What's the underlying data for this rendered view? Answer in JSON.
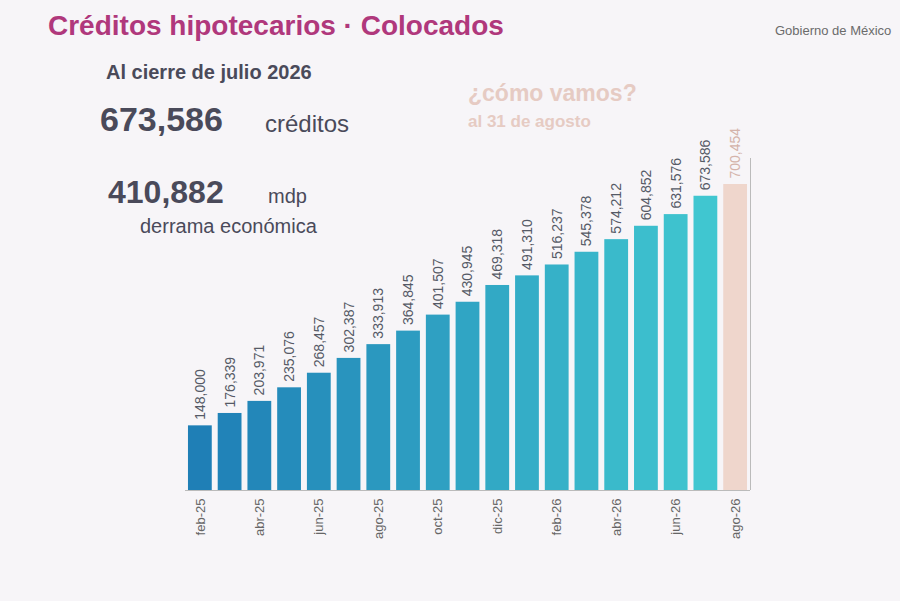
{
  "chart_data": {
    "type": "bar",
    "title": "Créditos hipotecarios · Colocados",
    "subtitle": "Al cierre de julio 2026",
    "annotations": [
      "673,586",
      "créditos",
      "410,882",
      "mdp",
      "derrama económica",
      "¿cómo vamos?",
      "al 31 de agosto",
      "Gobierno de México"
    ],
    "categories": [
      "feb-25",
      null,
      "abr-25",
      null,
      "jun-25",
      null,
      "ago-25",
      null,
      "oct-25",
      null,
      "dic-25",
      null,
      "feb-26",
      null,
      "abr-26",
      null,
      "jun-26",
      null,
      "ago-26"
    ],
    "values": [
      148000,
      176339,
      203971,
      235076,
      268457,
      302387,
      333913,
      364845,
      401507,
      430945,
      469318,
      491310,
      516237,
      545378,
      574212,
      604852,
      631576,
      673586,
      700454
    ],
    "value_labels": [
      "148,000",
      "176,339",
      "203,971",
      "235,076",
      "268,457",
      "302,387",
      "333,913",
      "364,845",
      "401,507",
      "430,945",
      "469,318",
      "491,310",
      "516,237",
      "545,378",
      "574,212",
      "604,852",
      "631,576",
      "673,586",
      "700,454"
    ],
    "colors": [
      "#1f7fb6",
      "#2183b8",
      "#2387b9",
      "#258cbb",
      "#2790bc",
      "#2994be",
      "#2b98bf",
      "#2d9cc1",
      "#2fa0c2",
      "#30a5c4",
      "#32a9c5",
      "#34adc7",
      "#36b1c8",
      "#38b5ca",
      "#3abacb",
      "#3cbecd",
      "#3ec2ce",
      "#40c6d0",
      "#efd6cc"
    ],
    "ylim": [
      0,
      760000
    ],
    "yticks": [],
    "grid": false,
    "data_labels": true,
    "tick_labels": "x"
  }
}
